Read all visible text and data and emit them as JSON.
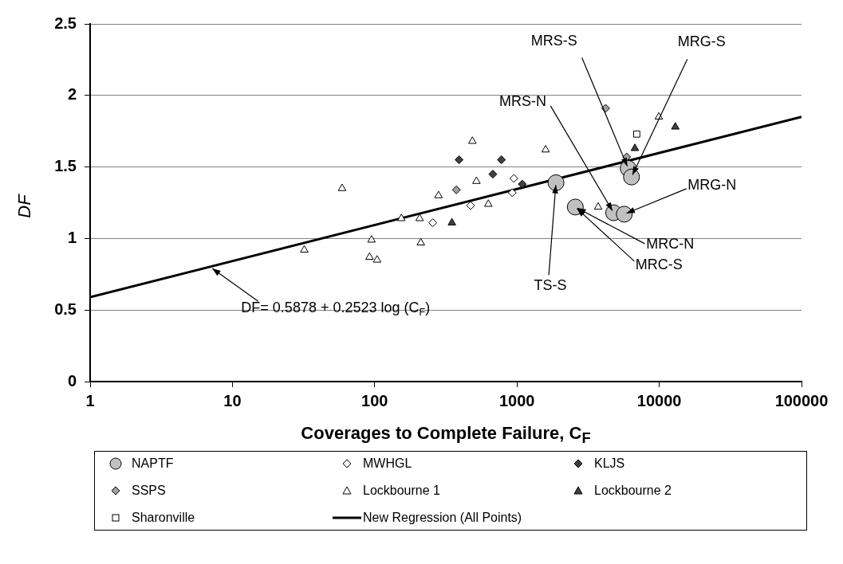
{
  "chart_data": {
    "type": "scatter",
    "xlabel": "Coverages to Complete Failure, C$_{F}$",
    "ylabel": "DF",
    "log": "x",
    "grid": "y",
    "legend": "bottom",
    "xlim": [
      1,
      100000
    ],
    "xticks": [
      1,
      10,
      100,
      1000,
      10000,
      100000
    ],
    "ylim": [
      0,
      2.5
    ],
    "yticks": [
      0,
      0.5,
      1,
      1.5,
      2,
      2.5
    ],
    "series": [
      {
        "name": "NAPTF",
        "marker": "circle",
        "color": "#c0c0c0",
        "x": [
          1880,
          2570,
          4780,
          5680,
          6050,
          6380
        ],
        "values": [
          1.39,
          1.22,
          1.18,
          1.17,
          1.49,
          1.43
        ]
      },
      {
        "name": "MWHGL",
        "marker": "diamond",
        "color": "#ffffff",
        "x": [
          256,
          472,
          927,
          951
        ],
        "values": [
          1.11,
          1.23,
          1.32,
          1.42
        ]
      },
      {
        "name": "KLJS",
        "marker": "diamond",
        "color": "#404040",
        "x": [
          392,
          677,
          778,
          1090
        ],
        "values": [
          1.55,
          1.45,
          1.55,
          1.38
        ]
      },
      {
        "name": "SSPS",
        "marker": "diamond",
        "color": "#a0a0a0",
        "x": [
          375,
          4200,
          5900
        ],
        "values": [
          1.34,
          1.91,
          1.57
        ]
      },
      {
        "name": "Lockbourne 1",
        "marker": "triangle",
        "color": "#ffffff",
        "x": [
          32,
          59,
          92,
          95,
          104,
          154,
          207,
          211,
          281,
          486,
          519,
          629,
          1590,
          3720,
          9930
        ],
        "values": [
          0.92,
          1.35,
          0.87,
          0.99,
          0.85,
          1.14,
          1.14,
          0.97,
          1.3,
          1.68,
          1.4,
          1.24,
          1.62,
          1.22,
          1.85
        ]
      },
      {
        "name": "Lockbourne 2",
        "marker": "triangle",
        "color": "#404040",
        "x": [
          349,
          6740,
          12970
        ],
        "values": [
          1.11,
          1.63,
          1.78
        ]
      },
      {
        "name": "Sharonville",
        "marker": "square",
        "color": "#ffffff",
        "x": [
          6950
        ],
        "values": [
          1.73
        ]
      },
      {
        "name": "New Regression (All Points)",
        "type": "line",
        "marker": "none",
        "line_style": "solid",
        "color": "#000000",
        "x": [
          1,
          100000
        ],
        "values": [
          0.59,
          1.85
        ]
      }
    ],
    "annotations": [
      {
        "text": "MRS-S",
        "x": 6050,
        "y": 1.49
      },
      {
        "text": "MRG-S",
        "x": 6380,
        "y": 1.43
      },
      {
        "text": "MRS-N",
        "x": 4780,
        "y": 1.18
      },
      {
        "text": "MRG-N",
        "x": 5680,
        "y": 1.17
      },
      {
        "text": "MRC-N",
        "x": 2570,
        "y": 1.22
      },
      {
        "text": "MRC-S",
        "x": 2570,
        "y": 1.22
      },
      {
        "text": "TS-S",
        "x": 1880,
        "y": 1.39
      },
      {
        "text": "DF= 0.5878 + 0.2523 log (C$_{F}$)",
        "x": 7,
        "y": 0.8
      }
    ]
  }
}
